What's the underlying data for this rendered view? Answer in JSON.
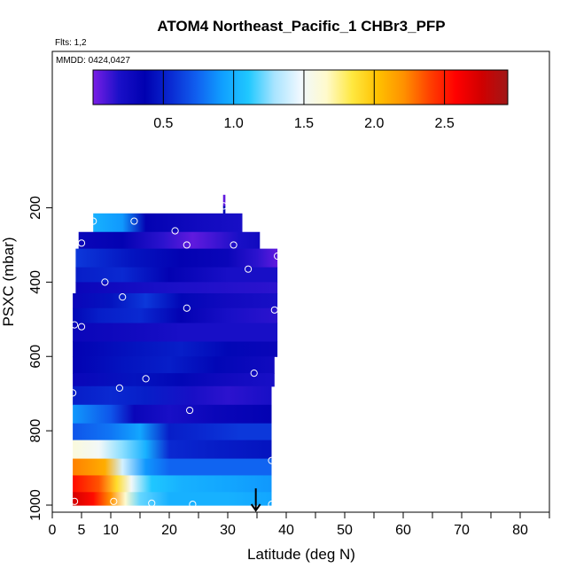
{
  "chart_data": {
    "type": "heatmap",
    "title": "ATOM4 Northeast_Pacific_1 CHBr3_PFP",
    "flights_label": "Flts: 1,2",
    "dates_label": "MMDD: 0424,0427",
    "xlabel": "Latitude (deg N)",
    "ylabel": "PSXC (mbar)",
    "xlim": [
      0,
      85
    ],
    "ylim": [
      1000,
      100
    ],
    "x_ticks": [
      0,
      5,
      10,
      20,
      30,
      40,
      50,
      60,
      70,
      80
    ],
    "x_tick_labels": [
      "0",
      "5",
      "10",
      "20",
      "30",
      "40",
      "50",
      "60",
      "70",
      "80"
    ],
    "y_ticks": [
      200,
      400,
      600,
      800,
      1000
    ],
    "y_tick_labels": [
      "200",
      "400",
      "600",
      "800",
      "1000"
    ],
    "colorbar": {
      "min": 0.0,
      "max": 2.95,
      "ticks": [
        0.5,
        1.0,
        1.5,
        2.0,
        2.5
      ],
      "tick_labels": [
        "0.5",
        "1.0",
        "1.5",
        "2.0",
        "2.5"
      ],
      "colors": [
        "#7a1ee6",
        "#1a10c8",
        "#0000b0",
        "#0a2ad2",
        "#1060f0",
        "#10a0ff",
        "#20c8ff",
        "#a8e4ff",
        "#f0f8ff",
        "#fffacc",
        "#ffe840",
        "#ffc000",
        "#ff9000",
        "#ff4000",
        "#ff0000",
        "#d00000",
        "#a01818"
      ]
    },
    "bands": [
      {
        "p_top": 165,
        "p_bot": 195,
        "x0": 29.2,
        "x1": 29.6,
        "stops": [
          [
            29.2,
            0.05
          ]
        ]
      },
      {
        "p_top": 195,
        "p_bot": 215,
        "x0": 29.2,
        "x1": 29.6,
        "stops": [
          [
            29.2,
            0.4
          ]
        ]
      },
      {
        "p_top": 215,
        "p_bot": 265,
        "x0": 7,
        "x1": 32.5,
        "stops": [
          [
            7,
            1.0
          ],
          [
            12,
            0.9
          ],
          [
            16,
            0.35
          ],
          [
            25,
            0.25
          ],
          [
            32.5,
            0.2
          ]
        ]
      },
      {
        "p_top": 265,
        "p_bot": 310,
        "x0": 4.5,
        "x1": 35.5,
        "stops": [
          [
            4.5,
            0.3
          ],
          [
            12,
            0.35
          ],
          [
            19,
            0.15
          ],
          [
            24,
            0.05
          ],
          [
            27,
            0.1
          ],
          [
            32,
            0.2
          ],
          [
            35.5,
            0.25
          ]
        ]
      },
      {
        "p_top": 310,
        "p_bot": 360,
        "x0": 4,
        "x1": 38.5,
        "stops": [
          [
            4,
            0.6
          ],
          [
            14,
            0.45
          ],
          [
            22,
            0.35
          ],
          [
            30,
            0.3
          ],
          [
            35,
            0.15
          ],
          [
            38.5,
            0.05
          ]
        ]
      },
      {
        "p_top": 360,
        "p_bot": 400,
        "x0": 4,
        "x1": 38.5,
        "stops": [
          [
            4,
            0.5
          ],
          [
            12,
            0.55
          ],
          [
            20,
            0.35
          ],
          [
            30,
            0.2
          ],
          [
            38.5,
            0.2
          ]
        ]
      },
      {
        "p_top": 400,
        "p_bot": 430,
        "x0": 4,
        "x1": 38.5,
        "stops": [
          [
            4,
            0.3
          ],
          [
            18,
            0.2
          ],
          [
            38.5,
            0.15
          ]
        ]
      },
      {
        "p_top": 430,
        "p_bot": 470,
        "x0": 3.5,
        "x1": 38.5,
        "stops": [
          [
            3.5,
            0.3
          ],
          [
            10,
            0.45
          ],
          [
            16,
            0.6
          ],
          [
            22,
            0.4
          ],
          [
            30,
            0.25
          ],
          [
            38.5,
            0.2
          ]
        ]
      },
      {
        "p_top": 470,
        "p_bot": 510,
        "x0": 3.5,
        "x1": 38.5,
        "stops": [
          [
            3.5,
            0.4
          ],
          [
            8,
            0.5
          ],
          [
            15,
            0.55
          ],
          [
            22,
            0.35
          ],
          [
            30,
            0.2
          ],
          [
            38.5,
            0.15
          ]
        ]
      },
      {
        "p_top": 510,
        "p_bot": 560,
        "x0": 3.5,
        "x1": 38.5,
        "stops": [
          [
            3.5,
            0.3
          ],
          [
            14,
            0.25
          ],
          [
            22,
            0.2
          ],
          [
            30,
            0.2
          ],
          [
            38.5,
            0.2
          ]
        ]
      },
      {
        "p_top": 560,
        "p_bot": 600,
        "x0": 3.5,
        "x1": 38.5,
        "stops": [
          [
            3.5,
            0.35
          ],
          [
            14,
            0.45
          ],
          [
            22,
            0.5
          ],
          [
            30,
            0.4
          ],
          [
            38.5,
            0.3
          ]
        ]
      },
      {
        "p_top": 600,
        "p_bot": 645,
        "x0": 3.5,
        "x1": 38,
        "stops": [
          [
            3.5,
            0.35
          ],
          [
            12,
            0.45
          ],
          [
            20,
            0.5
          ],
          [
            28,
            0.4
          ],
          [
            38,
            0.25
          ]
        ]
      },
      {
        "p_top": 645,
        "p_bot": 680,
        "x0": 3.5,
        "x1": 38,
        "stops": [
          [
            3.5,
            0.3
          ],
          [
            14,
            0.45
          ],
          [
            22,
            0.4
          ],
          [
            30,
            0.25
          ],
          [
            38,
            0.2
          ]
        ]
      },
      {
        "p_top": 680,
        "p_bot": 730,
        "x0": 3.5,
        "x1": 37.5,
        "stops": [
          [
            3.5,
            0.5
          ],
          [
            10,
            0.55
          ],
          [
            16,
            0.5
          ],
          [
            24,
            0.2
          ],
          [
            30,
            0.15
          ],
          [
            37.5,
            0.2
          ]
        ]
      },
      {
        "p_top": 730,
        "p_bot": 780,
        "x0": 3.5,
        "x1": 37.5,
        "stops": [
          [
            3.5,
            0.9
          ],
          [
            10,
            0.7
          ],
          [
            14,
            0.3
          ],
          [
            20,
            0.2
          ],
          [
            28,
            0.3
          ],
          [
            37.5,
            0.35
          ]
        ]
      },
      {
        "p_top": 780,
        "p_bot": 825,
        "x0": 3.5,
        "x1": 37.5,
        "stops": [
          [
            3.5,
            0.7
          ],
          [
            10,
            0.8
          ],
          [
            15,
            0.95
          ],
          [
            20,
            0.5
          ],
          [
            26,
            0.55
          ],
          [
            32,
            0.6
          ],
          [
            37.5,
            0.6
          ]
        ]
      },
      {
        "p_top": 825,
        "p_bot": 875,
        "x0": 3.5,
        "x1": 37.5,
        "stops": [
          [
            3.5,
            1.6
          ],
          [
            8,
            1.5
          ],
          [
            12,
            1.25
          ],
          [
            16,
            1.0
          ],
          [
            20,
            0.55
          ],
          [
            27,
            0.5
          ],
          [
            37.5,
            0.45
          ]
        ]
      },
      {
        "p_top": 875,
        "p_bot": 920,
        "x0": 3.5,
        "x1": 37.5,
        "stops": [
          [
            3.5,
            2.25
          ],
          [
            9,
            2.1
          ],
          [
            12,
            1.4
          ],
          [
            16,
            0.9
          ],
          [
            20,
            0.75
          ],
          [
            28,
            0.75
          ],
          [
            37.5,
            0.75
          ]
        ]
      },
      {
        "p_top": 920,
        "p_bot": 965,
        "x0": 3.5,
        "x1": 37.5,
        "stops": [
          [
            3.5,
            2.55
          ],
          [
            8,
            2.35
          ],
          [
            11,
            1.9
          ],
          [
            13.5,
            1.5
          ],
          [
            17,
            1.1
          ],
          [
            22,
            1.0
          ],
          [
            30,
            0.95
          ],
          [
            37.5,
            0.9
          ]
        ]
      },
      {
        "p_top": 965,
        "p_bot": 1000,
        "x0": 3.5,
        "x1": 37.5,
        "stops": [
          [
            3.5,
            2.75
          ],
          [
            7,
            2.55
          ],
          [
            10,
            2.2
          ],
          [
            12.5,
            1.65
          ],
          [
            15,
            1.2
          ],
          [
            20,
            1.0
          ],
          [
            30,
            1.0
          ],
          [
            37.5,
            0.95
          ]
        ]
      }
    ],
    "points": [
      {
        "lat": 29.3,
        "p": 195
      },
      {
        "lat": 7,
        "p": 236
      },
      {
        "lat": 14,
        "p": 236
      },
      {
        "lat": 21,
        "p": 262
      },
      {
        "lat": 5,
        "p": 295
      },
      {
        "lat": 23,
        "p": 300
      },
      {
        "lat": 31,
        "p": 300
      },
      {
        "lat": 33.5,
        "p": 365
      },
      {
        "lat": 38.5,
        "p": 330
      },
      {
        "lat": 9,
        "p": 400
      },
      {
        "lat": 12,
        "p": 440
      },
      {
        "lat": 23,
        "p": 470
      },
      {
        "lat": 38,
        "p": 475
      },
      {
        "lat": 3.8,
        "p": 515
      },
      {
        "lat": 5,
        "p": 520
      },
      {
        "lat": 34.5,
        "p": 645
      },
      {
        "lat": 16,
        "p": 660
      },
      {
        "lat": 11.5,
        "p": 685
      },
      {
        "lat": 3.5,
        "p": 698
      },
      {
        "lat": 23.5,
        "p": 745
      },
      {
        "lat": 37.5,
        "p": 880
      },
      {
        "lat": 3.8,
        "p": 990
      },
      {
        "lat": 10.5,
        "p": 990
      },
      {
        "lat": 17,
        "p": 995
      },
      {
        "lat": 24,
        "p": 998
      },
      {
        "lat": 37.5,
        "p": 998
      }
    ],
    "arrow": {
      "lat": 34.8,
      "p_from": 955,
      "p_to": 1000
    }
  }
}
